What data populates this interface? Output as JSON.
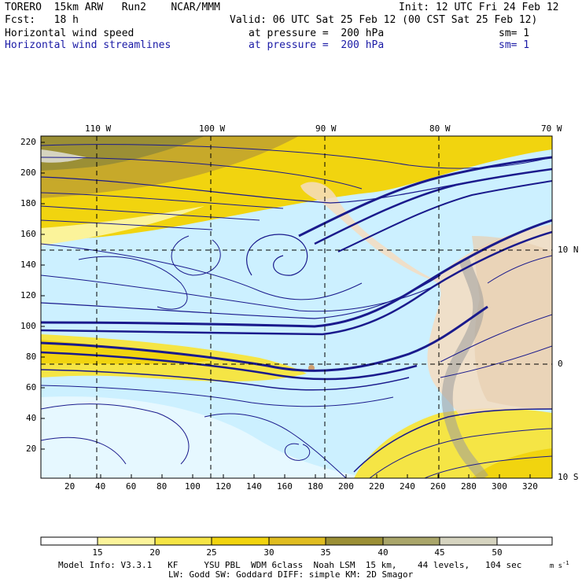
{
  "header": {
    "model": "TORERO  15km ARW   Run2    NCAR/MMM",
    "init": "Init: 12 UTC Fri 24 Feb 12",
    "fcst": "Fcst:   18 h",
    "valid": "Valid: 06 UTC Sat 25 Feb 12 (00 CST Sat 25 Feb 12)",
    "field1": {
      "name": "Horizontal wind speed",
      "level": "at pressure =  200 hPa",
      "sm": "sm= 1"
    },
    "field2": {
      "name": "Horizontal wind streamlines",
      "level": "at pressure =  200 hPa",
      "sm": "sm= 1"
    }
  },
  "map": {
    "lon_labels": [
      "110 W",
      "100 W",
      "90 W",
      "80 W",
      "70 W"
    ],
    "lat_labels": [
      "10 N",
      "0",
      "10 S"
    ],
    "y_ticks": [
      "220",
      "200",
      "180",
      "160",
      "140",
      "120",
      "100",
      "80",
      "60",
      "40",
      "20"
    ],
    "x_ticks": [
      "20",
      "40",
      "60",
      "80",
      "100",
      "120",
      "140",
      "160",
      "180",
      "200",
      "220",
      "240",
      "260",
      "280",
      "300",
      "320"
    ]
  },
  "colorbar": {
    "labels": [
      "15",
      "20",
      "25",
      "30",
      "35",
      "40",
      "45",
      "50"
    ],
    "unit": "m s",
    "unit_exp": "-1",
    "colors": [
      "#ffffff",
      "#fbf39a",
      "#f5e545",
      "#f1d40f",
      "#e0bd20",
      "#bfa42a",
      "#9b8f35",
      "#aaa66a",
      "#d6d4c0",
      "#ffffff"
    ]
  },
  "footer": {
    "line1": "Model Info: V3.3.1   KF     YSU PBL  WDM 6class  Noah LSM  15 km,    44 levels,   104 sec",
    "line2": "LW: Godd SW: Goddard DIFF: simple KM: 2D Smagor"
  }
}
